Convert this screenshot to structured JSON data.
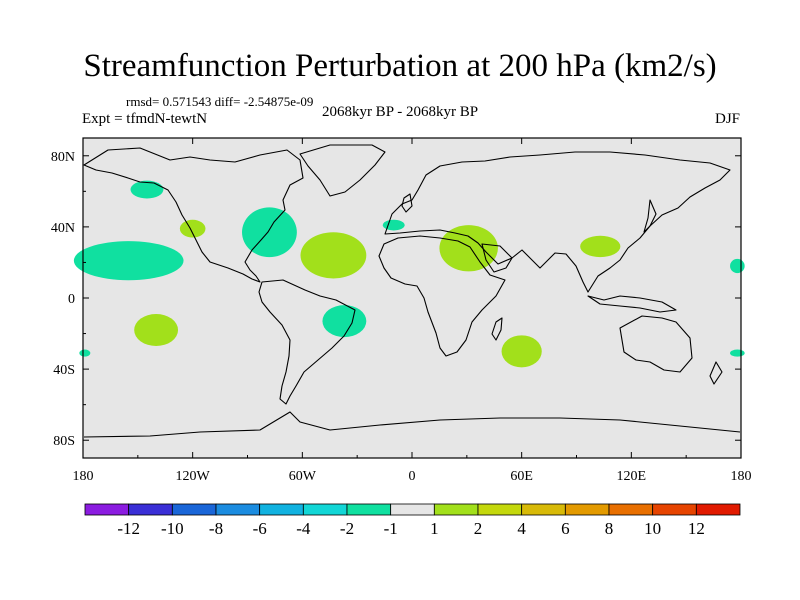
{
  "chart_data": {
    "type": "heatmap",
    "title": "Streamfunction Perturbation at 200 hPa (km2/s)",
    "stats_text": "rmsd= 0.571543 diff= -2.54875e-09",
    "left_label": "Expt = tfmdN-tewtN",
    "center_label": "2068kyr BP - 2068kyr BP",
    "right_label": "DJF",
    "projection": "cylindrical equidistant",
    "xlim": [
      -180,
      180
    ],
    "ylim": [
      -90,
      90
    ],
    "x_ticks": [
      {
        "value": -180,
        "label": "180"
      },
      {
        "value": -120,
        "label": "120W"
      },
      {
        "value": -60,
        "label": "60W"
      },
      {
        "value": 0,
        "label": "0"
      },
      {
        "value": 60,
        "label": "60E"
      },
      {
        "value": 120,
        "label": "120E"
      },
      {
        "value": 180,
        "label": "180"
      }
    ],
    "y_ticks": [
      {
        "value": 80,
        "label": "80N"
      },
      {
        "value": 40,
        "label": "40N"
      },
      {
        "value": 0,
        "label": "0"
      },
      {
        "value": -40,
        "label": "40S"
      },
      {
        "value": -80,
        "label": "80S"
      }
    ],
    "colorbar": {
      "colors": [
        "#8b1ce0",
        "#3a2fd6",
        "#1a66d8",
        "#1b8ce0",
        "#11b2e0",
        "#12d6d6",
        "#10e0a0",
        "#e6e6e6",
        "#a2e01b",
        "#c4d80c",
        "#d8ba08",
        "#e39a00",
        "#e86f00",
        "#e64400",
        "#e11a00"
      ],
      "labels": [
        "-12",
        "-10",
        "-8",
        "-6",
        "-4",
        "-2",
        "-1",
        "1",
        "2",
        "4",
        "6",
        "8",
        "10",
        "12"
      ]
    },
    "background_value_color": "#e6e6e6",
    "regions": [
      {
        "sign": "negative",
        "level": "-1",
        "color": "#10e0a0",
        "lon": -145,
        "lat": 61,
        "rlon": 9,
        "rlat": 5
      },
      {
        "sign": "negative",
        "level": "-1",
        "color": "#10e0a0",
        "lon": -155,
        "lat": 21,
        "rlon": 30,
        "rlat": 11
      },
      {
        "sign": "negative",
        "level": "-1",
        "color": "#10e0a0",
        "lon": -78,
        "lat": 37,
        "rlon": 15,
        "rlat": 14
      },
      {
        "sign": "negative",
        "level": "-1",
        "color": "#10e0a0",
        "lon": -37,
        "lat": -13,
        "rlon": 12,
        "rlat": 9
      },
      {
        "sign": "negative",
        "level": "-1",
        "color": "#10e0a0",
        "lon": -10,
        "lat": 41,
        "rlon": 6,
        "rlat": 3
      },
      {
        "sign": "negative",
        "level": "-1",
        "color": "#10e0a0",
        "lon": 178,
        "lat": 18,
        "rlon": 4,
        "rlat": 4
      },
      {
        "sign": "negative",
        "level": "-1",
        "color": "#10e0a0",
        "lon": 178,
        "lat": -31,
        "rlon": 4,
        "rlat": 2
      },
      {
        "sign": "negative",
        "level": "-1",
        "color": "#10e0a0",
        "lon": -179,
        "lat": -31,
        "rlon": 3,
        "rlat": 2
      },
      {
        "sign": "positive",
        "level": "1",
        "color": "#a2e01b",
        "lon": -140,
        "lat": -18,
        "rlon": 12,
        "rlat": 9
      },
      {
        "sign": "positive",
        "level": "1",
        "color": "#a2e01b",
        "lon": -120,
        "lat": 39,
        "rlon": 7,
        "rlat": 5
      },
      {
        "sign": "positive",
        "level": "1",
        "color": "#a2e01b",
        "lon": -43,
        "lat": 24,
        "rlon": 18,
        "rlat": 13
      },
      {
        "sign": "positive",
        "level": "1",
        "color": "#a2e01b",
        "lon": 31,
        "lat": 28,
        "rlon": 16,
        "rlat": 13
      },
      {
        "sign": "positive",
        "level": "1",
        "color": "#a2e01b",
        "lon": 60,
        "lat": -30,
        "rlon": 11,
        "rlat": 9
      },
      {
        "sign": "positive",
        "level": "1",
        "color": "#a2e01b",
        "lon": 103,
        "lat": 29,
        "rlon": 11,
        "rlat": 6
      }
    ]
  }
}
